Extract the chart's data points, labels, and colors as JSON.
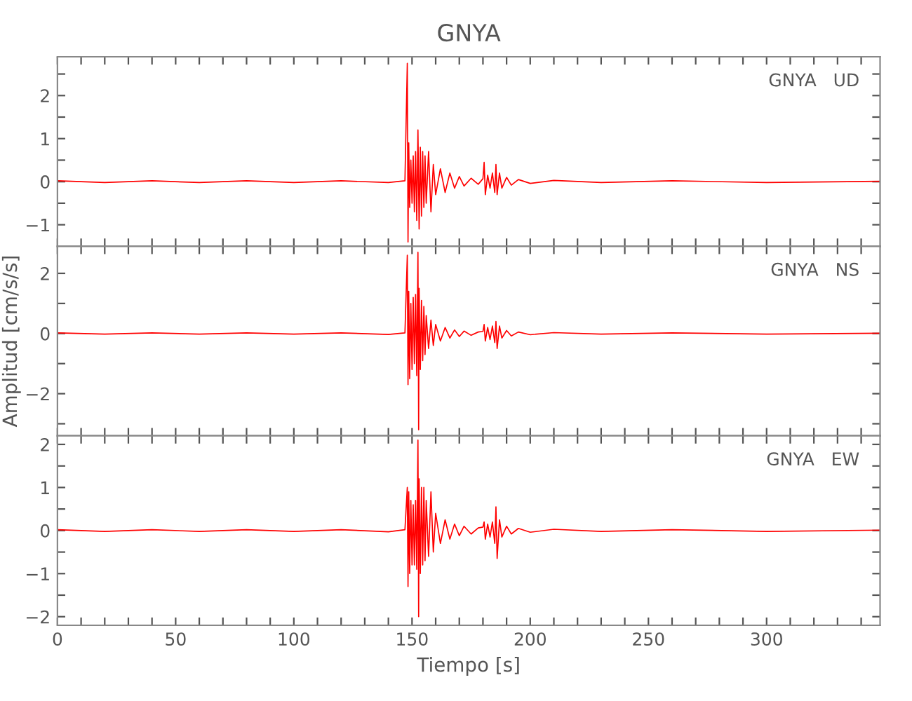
{
  "chart_data": [
    {
      "type": "line",
      "title": "GNYA",
      "annotations": [
        "GNYA   UD"
      ],
      "tick_labels": "y",
      "grid": false,
      "marker": "none",
      "line_style": "solid",
      "xlim": [
        0,
        348
      ],
      "ylim": [
        -1.5,
        2.9
      ],
      "xticks": [
        0,
        {
          "value": 10,
          "label": null
        },
        {
          "value": 20,
          "label": null
        },
        {
          "value": 30,
          "label": null
        },
        {
          "value": 40,
          "label": null
        },
        50,
        {
          "value": 60,
          "label": null
        },
        {
          "value": 70,
          "label": null
        },
        {
          "value": 80,
          "label": null
        },
        {
          "value": 90,
          "label": null
        },
        100,
        {
          "value": 110,
          "label": null
        },
        {
          "value": 120,
          "label": null
        },
        {
          "value": 130,
          "label": null
        },
        {
          "value": 140,
          "label": null
        },
        150,
        {
          "value": 160,
          "label": null
        },
        {
          "value": 170,
          "label": null
        },
        {
          "value": 180,
          "label": null
        },
        {
          "value": 190,
          "label": null
        },
        200,
        {
          "value": 210,
          "label": null
        },
        {
          "value": 220,
          "label": null
        },
        {
          "value": 230,
          "label": null
        },
        {
          "value": 240,
          "label": null
        },
        250,
        {
          "value": 260,
          "label": null
        },
        {
          "value": 270,
          "label": null
        },
        {
          "value": 280,
          "label": null
        },
        {
          "value": 290,
          "label": null
        },
        300,
        {
          "value": 310,
          "label": null
        },
        {
          "value": 320,
          "label": null
        },
        {
          "value": 330,
          "label": null
        },
        {
          "value": 340,
          "label": null
        }
      ],
      "yticks": [
        -1,
        {
          "value": -0.5,
          "label": null
        },
        0,
        {
          "value": 0.5,
          "label": null
        },
        1,
        {
          "value": 1.5,
          "label": null
        },
        2,
        {
          "value": 2.5,
          "label": null
        }
      ],
      "series": [
        {
          "color": "#ff0000",
          "x": [
            0,
            20,
            40,
            60,
            80,
            100,
            120,
            140,
            147,
            148,
            148.3,
            148.6,
            149,
            149.5,
            150,
            150.5,
            151,
            151.5,
            152,
            152.5,
            153,
            153.5,
            154,
            154.5,
            155,
            155.5,
            156,
            157,
            158,
            159,
            160,
            162,
            164,
            166,
            168,
            170,
            172,
            175,
            178,
            180,
            180.5,
            181,
            182,
            183,
            184,
            185,
            185.5,
            186,
            187,
            188,
            190,
            192,
            195,
            200,
            210,
            230,
            260,
            300,
            348
          ],
          "values": [
            0.02,
            -0.02,
            0.02,
            -0.02,
            0.02,
            -0.02,
            0.02,
            -0.02,
            0.02,
            2.75,
            -1.4,
            0.9,
            -0.6,
            0.5,
            -0.5,
            0.6,
            -0.7,
            0.7,
            -0.9,
            1.2,
            -1.1,
            0.8,
            -0.8,
            0.7,
            -0.6,
            0.6,
            -0.5,
            0.7,
            -0.7,
            0.4,
            -0.3,
            0.3,
            -0.25,
            0.2,
            -0.15,
            0.12,
            -0.1,
            0.08,
            -0.06,
            0.07,
            0.45,
            -0.3,
            0.15,
            -0.15,
            0.2,
            -0.25,
            0.4,
            -0.3,
            0.2,
            -0.15,
            0.1,
            -0.08,
            0.05,
            -0.04,
            0.03,
            -0.02,
            0.02,
            -0.02,
            0.01
          ]
        }
      ]
    },
    {
      "type": "line",
      "ylabel": "Amplitud [cm/s/s]",
      "annotations": [
        "GNYA   NS"
      ],
      "tick_labels": "y",
      "grid": false,
      "marker": "none",
      "line_style": "solid",
      "xlim": [
        0,
        348
      ],
      "ylim": [
        -3.4,
        2.9
      ],
      "xticks": [
        0,
        {
          "value": 10,
          "label": null
        },
        {
          "value": 20,
          "label": null
        },
        {
          "value": 30,
          "label": null
        },
        {
          "value": 40,
          "label": null
        },
        50,
        {
          "value": 60,
          "label": null
        },
        {
          "value": 70,
          "label": null
        },
        {
          "value": 80,
          "label": null
        },
        {
          "value": 90,
          "label": null
        },
        100,
        {
          "value": 110,
          "label": null
        },
        {
          "value": 120,
          "label": null
        },
        {
          "value": 130,
          "label": null
        },
        {
          "value": 140,
          "label": null
        },
        150,
        {
          "value": 160,
          "label": null
        },
        {
          "value": 170,
          "label": null
        },
        {
          "value": 180,
          "label": null
        },
        {
          "value": 190,
          "label": null
        },
        200,
        {
          "value": 210,
          "label": null
        },
        {
          "value": 220,
          "label": null
        },
        {
          "value": 230,
          "label": null
        },
        {
          "value": 240,
          "label": null
        },
        250,
        {
          "value": 260,
          "label": null
        },
        {
          "value": 270,
          "label": null
        },
        {
          "value": 280,
          "label": null
        },
        {
          "value": 290,
          "label": null
        },
        300,
        {
          "value": 310,
          "label": null
        },
        {
          "value": 320,
          "label": null
        },
        {
          "value": 330,
          "label": null
        },
        {
          "value": 340,
          "label": null
        }
      ],
      "yticks": [
        {
          "value": -3,
          "label": null
        },
        -2,
        {
          "value": -1,
          "label": null
        },
        0,
        {
          "value": 1,
          "label": null
        },
        2
      ],
      "series": [
        {
          "color": "#ff0000",
          "x": [
            0,
            20,
            40,
            60,
            80,
            100,
            120,
            140,
            147,
            148,
            148.3,
            148.6,
            149,
            149.5,
            150,
            150.5,
            151,
            151.5,
            152,
            152.5,
            152.8,
            153,
            153.5,
            154,
            154.5,
            155,
            155.5,
            156,
            157,
            158,
            159,
            160,
            162,
            164,
            166,
            168,
            170,
            172,
            175,
            178,
            180,
            180.5,
            181,
            182,
            183,
            184,
            185,
            185.5,
            186,
            187,
            188,
            190,
            192,
            195,
            200,
            210,
            230,
            260,
            300,
            348
          ],
          "values": [
            0.02,
            -0.02,
            0.02,
            -0.02,
            0.02,
            -0.02,
            0.02,
            -0.03,
            0.02,
            2.6,
            -1.7,
            1.4,
            -1.5,
            1.0,
            -1.2,
            1.2,
            -1.0,
            1.3,
            -1.4,
            2.7,
            -3.2,
            1.5,
            -1.2,
            1.1,
            -0.9,
            0.9,
            -0.7,
            0.6,
            -0.5,
            0.45,
            -0.4,
            0.3,
            -0.25,
            0.2,
            -0.15,
            0.12,
            -0.1,
            0.08,
            -0.06,
            0.05,
            0.07,
            0.3,
            -0.25,
            0.2,
            -0.2,
            0.25,
            -0.3,
            0.4,
            -0.5,
            0.25,
            -0.15,
            0.1,
            -0.08,
            0.05,
            -0.04,
            0.03,
            -0.02,
            0.02,
            -0.02,
            0.01
          ]
        }
      ]
    },
    {
      "type": "line",
      "xlabel": "Tiempo [s]",
      "annotations": [
        "GNYA   EW"
      ],
      "grid": false,
      "marker": "none",
      "line_style": "solid",
      "xlim": [
        0,
        348
      ],
      "ylim": [
        -2.2,
        2.2
      ],
      "xticks": [
        0,
        {
          "value": 10,
          "label": null
        },
        {
          "value": 20,
          "label": null
        },
        {
          "value": 30,
          "label": null
        },
        {
          "value": 40,
          "label": null
        },
        50,
        {
          "value": 60,
          "label": null
        },
        {
          "value": 70,
          "label": null
        },
        {
          "value": 80,
          "label": null
        },
        {
          "value": 90,
          "label": null
        },
        100,
        {
          "value": 110,
          "label": null
        },
        {
          "value": 120,
          "label": null
        },
        {
          "value": 130,
          "label": null
        },
        {
          "value": 140,
          "label": null
        },
        150,
        {
          "value": 160,
          "label": null
        },
        {
          "value": 170,
          "label": null
        },
        {
          "value": 180,
          "label": null
        },
        {
          "value": 190,
          "label": null
        },
        200,
        {
          "value": 210,
          "label": null
        },
        {
          "value": 220,
          "label": null
        },
        {
          "value": 230,
          "label": null
        },
        {
          "value": 240,
          "label": null
        },
        250,
        {
          "value": 260,
          "label": null
        },
        {
          "value": 270,
          "label": null
        },
        {
          "value": 280,
          "label": null
        },
        {
          "value": 290,
          "label": null
        },
        300,
        {
          "value": 310,
          "label": null
        },
        {
          "value": 320,
          "label": null
        },
        {
          "value": 330,
          "label": null
        },
        {
          "value": 340,
          "label": null
        }
      ],
      "yticks": [
        -2,
        {
          "value": -1.5,
          "label": null
        },
        -1,
        {
          "value": -0.5,
          "label": null
        },
        0,
        {
          "value": 0.5,
          "label": null
        },
        1,
        {
          "value": 1.5,
          "label": null
        },
        2
      ],
      "series": [
        {
          "color": "#ff0000",
          "x": [
            0,
            20,
            40,
            60,
            80,
            100,
            120,
            140,
            147,
            148,
            148.3,
            148.6,
            149,
            149.5,
            150,
            150.5,
            151,
            151.5,
            152,
            152.5,
            152.8,
            153,
            153.5,
            154,
            154.5,
            155,
            155.5,
            156,
            157,
            158,
            159,
            160,
            162,
            164,
            166,
            168,
            170,
            172,
            175,
            178,
            180,
            180.5,
            181,
            182,
            183,
            184,
            185,
            185.5,
            186,
            187,
            188,
            190,
            192,
            195,
            200,
            210,
            230,
            260,
            300,
            348
          ],
          "values": [
            0.02,
            -0.02,
            0.02,
            -0.02,
            0.02,
            -0.02,
            0.02,
            -0.03,
            0.02,
            1.0,
            -1.3,
            0.9,
            -1.0,
            0.7,
            -0.8,
            0.6,
            -0.8,
            0.7,
            -0.9,
            2.1,
            -2.0,
            1.2,
            -1.0,
            1.0,
            -0.8,
            1.0,
            -0.7,
            0.7,
            -0.6,
            0.9,
            -0.5,
            0.4,
            -0.3,
            0.25,
            -0.2,
            0.15,
            -0.12,
            0.1,
            -0.08,
            0.06,
            0.08,
            0.2,
            -0.2,
            0.15,
            -0.15,
            0.2,
            -0.3,
            0.55,
            -0.65,
            0.25,
            -0.15,
            0.1,
            -0.08,
            0.05,
            -0.04,
            0.03,
            -0.02,
            0.02,
            -0.02,
            0.01
          ]
        }
      ]
    }
  ]
}
